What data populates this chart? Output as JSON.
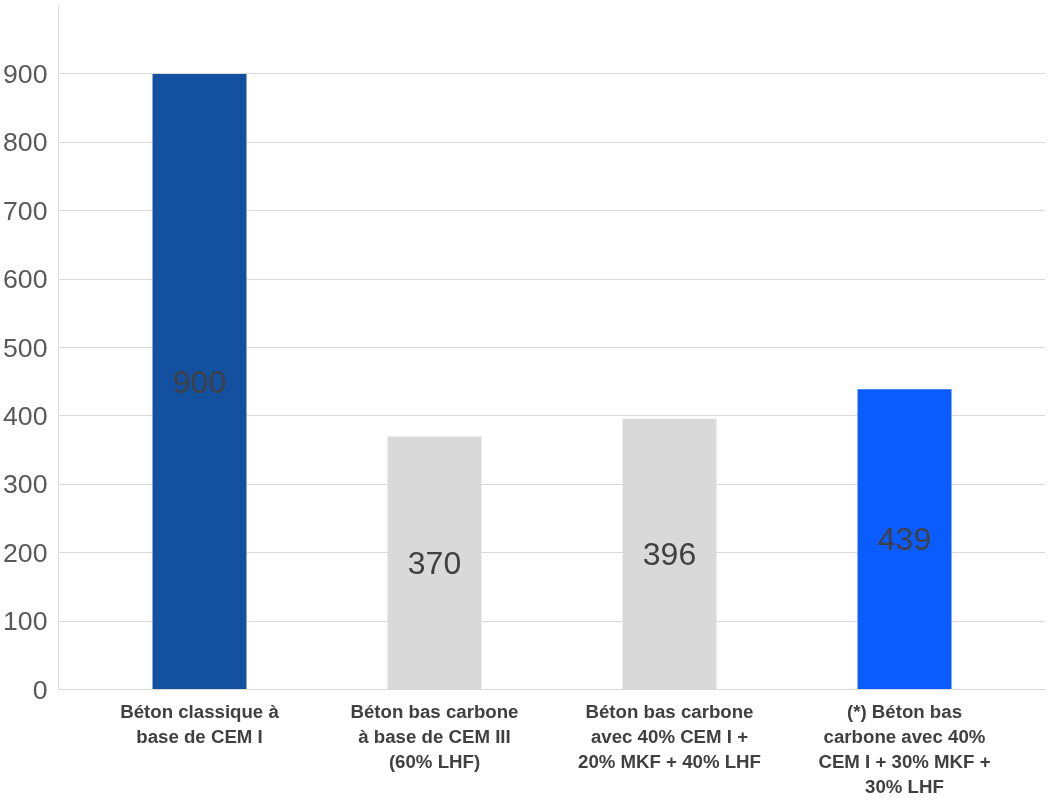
{
  "chart_data": {
    "type": "bar",
    "categories": [
      "Béton classique à base de CEM I",
      "Béton bas carbone à base de CEM III (60% LHF)",
      "Béton bas carbone avec 40% CEM I + 20% MKF + 40% LHF",
      "(*) Béton bas carbone avec 40% CEM I + 30% MKF + 30% LHF"
    ],
    "values": [
      900,
      370,
      396,
      439
    ],
    "colors": [
      "#1450a0",
      "#d9d9d9",
      "#d9d9d9",
      "#0a5cff"
    ],
    "ylim": [
      0,
      1000
    ],
    "yticks": [
      0,
      100,
      200,
      300,
      400,
      500,
      600,
      700,
      800,
      900
    ],
    "grid": "y",
    "data_labels": true
  }
}
